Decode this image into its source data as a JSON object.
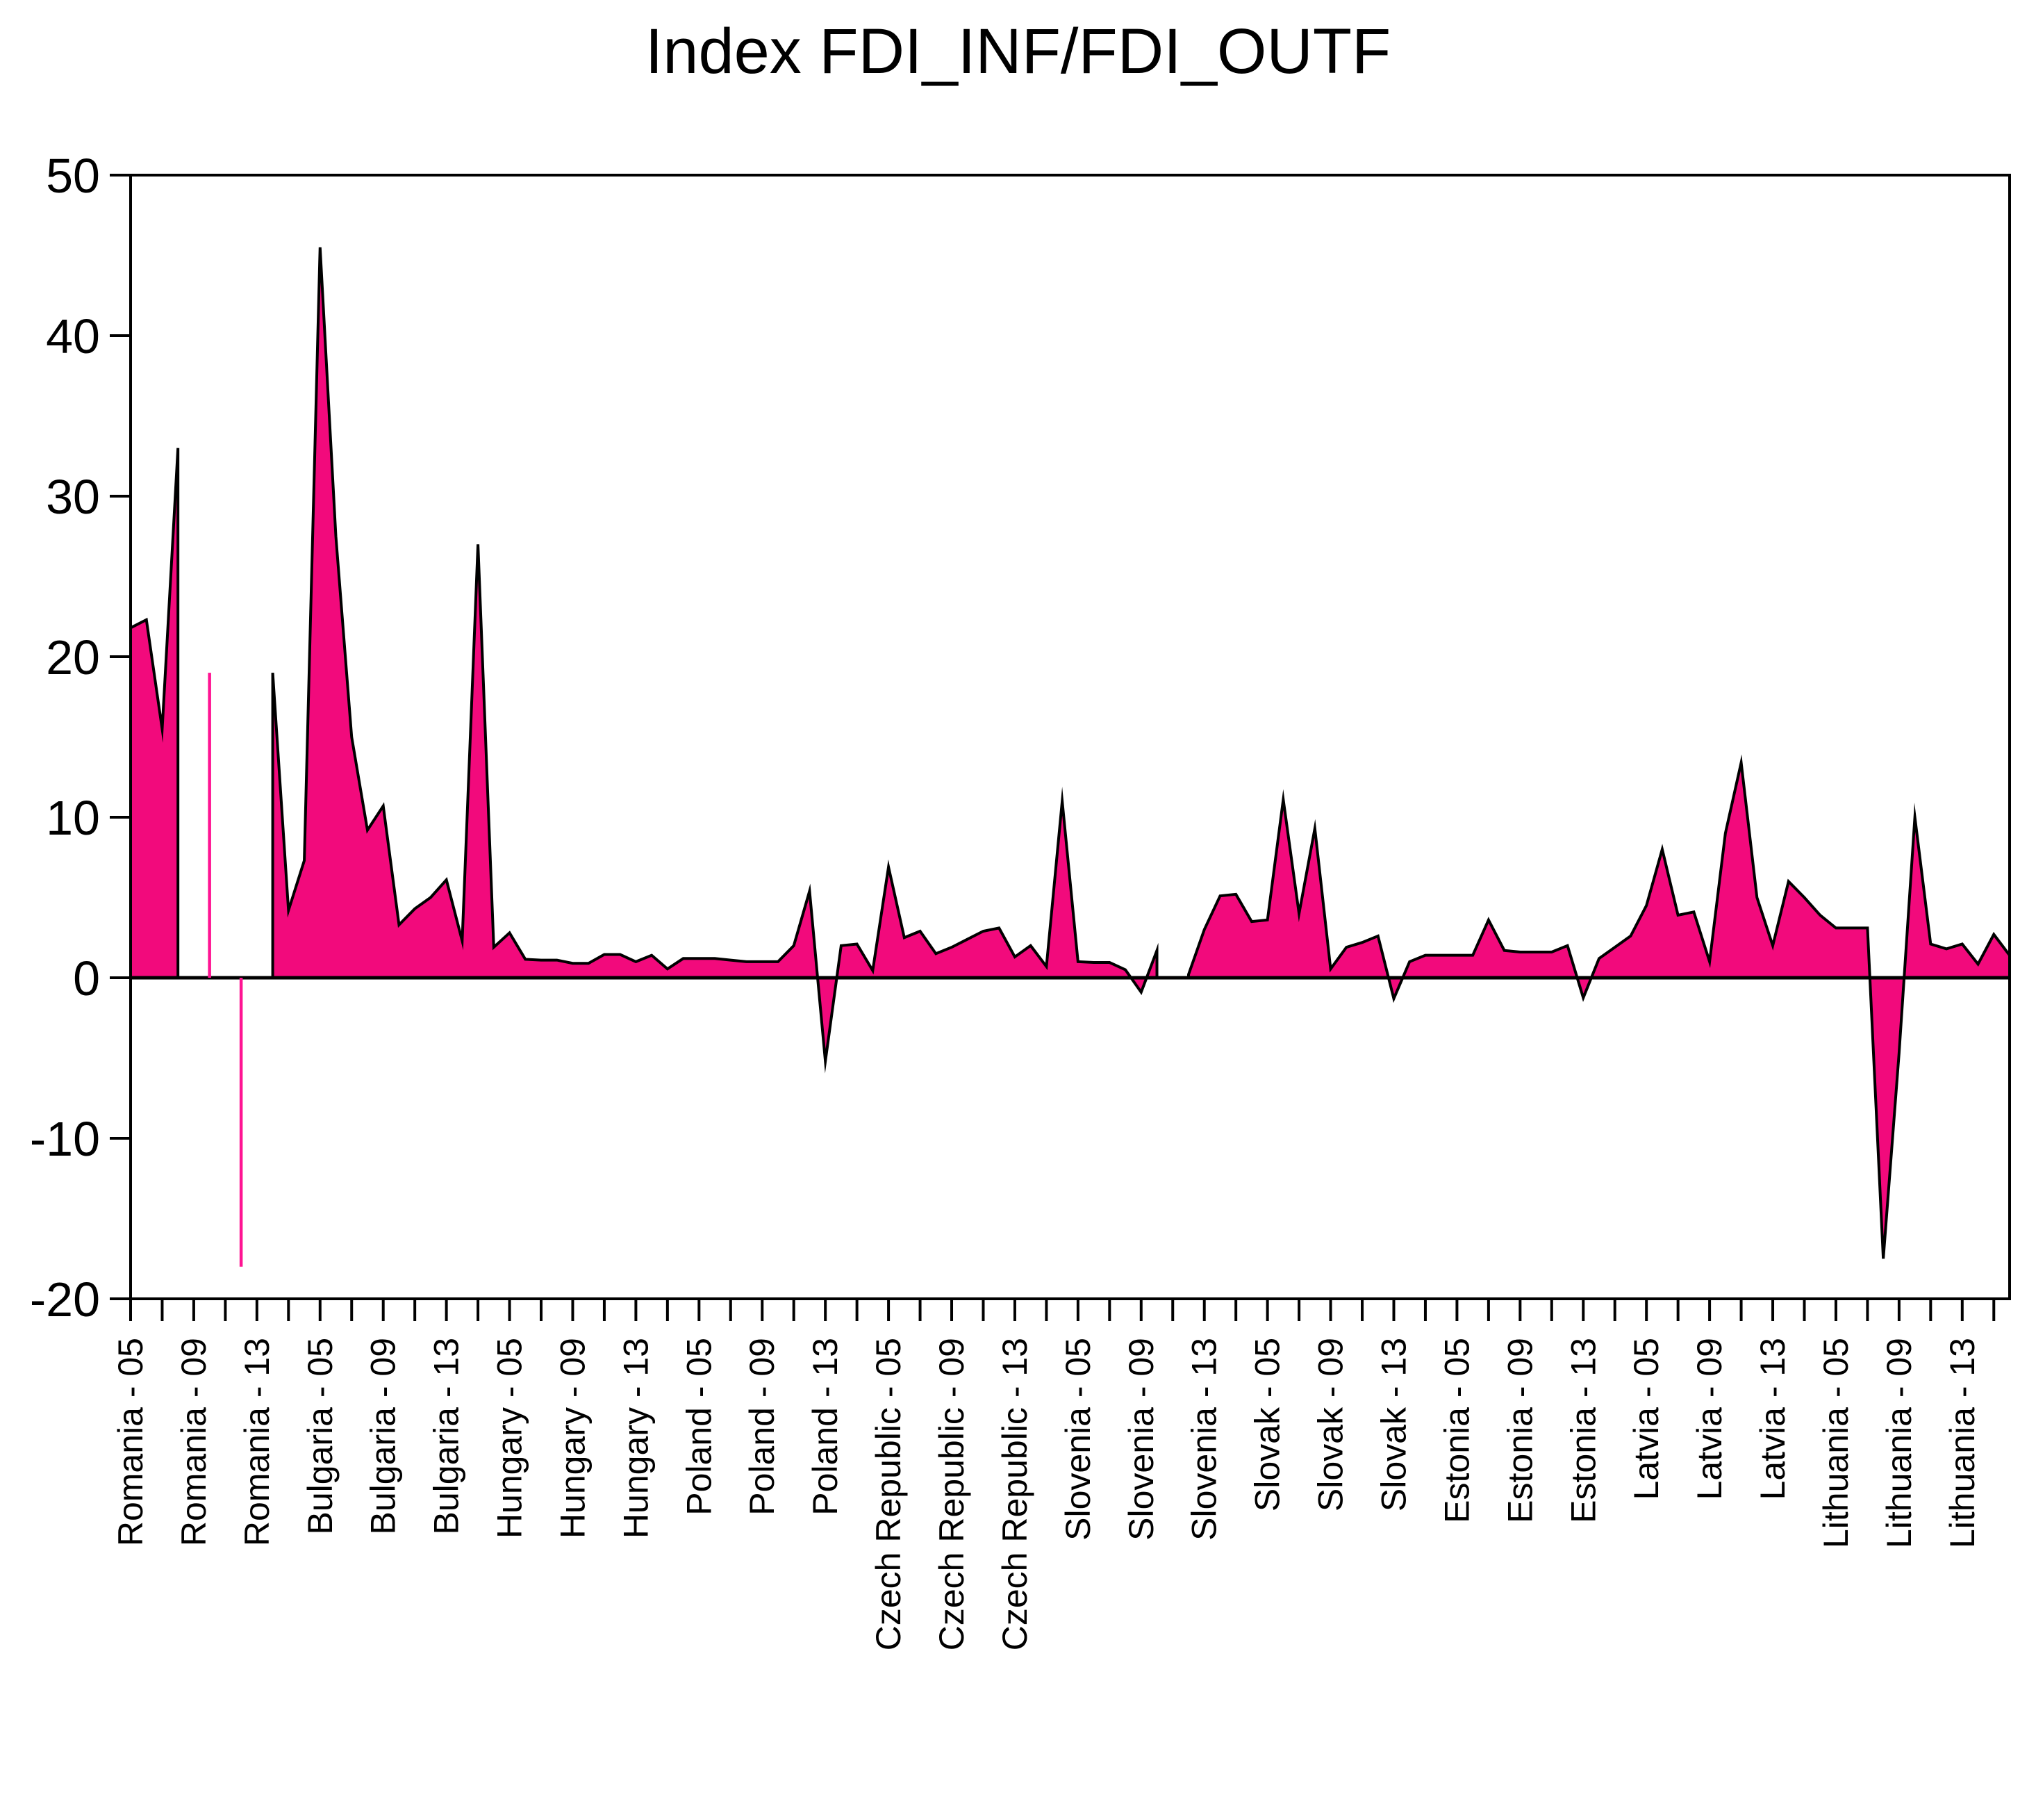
{
  "title": "Index FDI_INF/FDI_OUTF",
  "chart_data": {
    "type": "area",
    "title": "Index FDI_INF/FDI_OUTF",
    "xlabel": "",
    "ylabel": "",
    "ylim": [
      -20,
      50
    ],
    "yticks": [
      50,
      40,
      30,
      20,
      10,
      0,
      -10,
      -20
    ],
    "grid": "off",
    "legend": "none",
    "series_name": "FDI_INF/FDI_OUTF",
    "x_structure": {
      "panel_type": "country-year panel",
      "year_start": 2005,
      "year_end": 2016,
      "labeled_years": [
        2005,
        2009,
        2013
      ],
      "minor_tick_years": [
        2005,
        2007,
        2009,
        2011,
        2013,
        2015
      ],
      "label_format": "{country} - {yy}"
    },
    "colors": {
      "area_fill": "#f20a7c",
      "area_outline": "#000000",
      "isolated_point_line": "#ff1493",
      "axis": "#000000",
      "background": "#ffffff"
    },
    "panels": [
      {
        "country": "Romania",
        "values": [
          21.8,
          22.3,
          15.5,
          33.0,
          null,
          19.0,
          null,
          -18.0,
          null,
          19.0,
          4.2,
          7.3
        ]
      },
      {
        "country": "Bulgaria",
        "values": [
          45.5,
          27.5,
          15.0,
          9.2,
          10.7,
          3.3,
          4.3,
          5.0,
          6.1,
          2.3,
          27.0,
          1.9
        ]
      },
      {
        "country": "Hungary",
        "values": [
          2.8,
          1.15,
          1.1,
          1.1,
          0.9,
          0.9,
          1.45,
          1.45,
          1.0,
          1.4,
          0.55,
          1.2
        ]
      },
      {
        "country": "Poland",
        "values": [
          1.2,
          1.2,
          1.1,
          1.0,
          1.0,
          1.0,
          2.0,
          5.4,
          -5.2,
          2.0,
          2.1,
          0.45
        ]
      },
      {
        "country": "Czech Republic",
        "values": [
          6.9,
          2.5,
          2.9,
          1.5,
          1.9,
          2.4,
          2.9,
          3.1,
          1.3,
          2.0,
          0.7,
          11.0
        ]
      },
      {
        "country": "Slovenia",
        "values": [
          1.0,
          0.95,
          0.95,
          0.5,
          -0.9,
          1.7,
          null,
          0.2,
          3.0,
          5.1,
          5.2,
          3.5
        ]
      },
      {
        "country": "Slovak",
        "values": [
          3.6,
          11.1,
          4.0,
          9.3,
          0.55,
          1.9,
          2.2,
          2.6,
          -1.3,
          1.0,
          1.4,
          1.4
        ]
      },
      {
        "country": "Estonia",
        "values": [
          1.4,
          1.4,
          3.6,
          1.7,
          1.6,
          1.6,
          1.6,
          2.0,
          -1.25,
          1.2,
          1.9,
          2.6
        ]
      },
      {
        "country": "Latvia",
        "values": [
          4.5,
          8.0,
          3.9,
          4.1,
          1.0,
          9.0,
          13.4,
          5.0,
          2.0,
          6.0,
          5.0,
          3.9
        ]
      },
      {
        "country": "Lithuania",
        "values": [
          3.1,
          3.1,
          3.1,
          -17.5,
          -4.7,
          10.0,
          2.1,
          1.8,
          2.1,
          0.85,
          2.7,
          1.4
        ]
      }
    ]
  }
}
